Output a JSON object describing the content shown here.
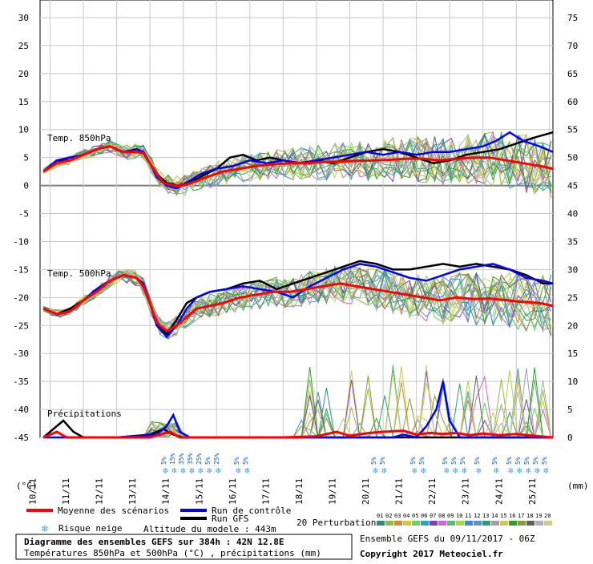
{
  "chart_data": {
    "type": "line",
    "title": "Diagramme des ensembles GEFS sur 384h : 42N 12.8E",
    "subtitle": "Températures 850hPa et 500hPa (°C) , précipitations (mm)",
    "left_axis": {
      "label": "(°C)",
      "ylim": [
        -45,
        30
      ],
      "ticks": [
        "30",
        "25",
        "20",
        "15",
        "10",
        "5",
        "0",
        "-5",
        "-10",
        "-15",
        "-20",
        "-25",
        "-30",
        "-35",
        "-40",
        "-45"
      ]
    },
    "right_axis": {
      "label": "(mm)",
      "ylim": [
        0,
        75
      ],
      "ticks": [
        "75",
        "70",
        "65",
        "60",
        "55",
        "50",
        "45",
        "40",
        "35",
        "30",
        "25",
        "20",
        "15",
        "10",
        "5",
        "0"
      ]
    },
    "x_ticks": [
      "10/11",
      "11/11",
      "12/11",
      "13/11",
      "14/11",
      "15/11",
      "16/11",
      "17/11",
      "18/11",
      "19/11",
      "20/11",
      "21/11",
      "22/11",
      "23/11",
      "24/11",
      "25/11"
    ],
    "grid": true,
    "panels": [
      {
        "label": "Temp. 850hPa"
      },
      {
        "label": "Temp. 500hPa"
      },
      {
        "label": "Précipitations"
      }
    ],
    "series": [
      {
        "name": "Moyenne des scénarios",
        "color": "#ff0000",
        "t850": [
          [
            9.8,
            2.5
          ],
          [
            10.2,
            4
          ],
          [
            10.6,
            4.5
          ],
          [
            11,
            5.5
          ],
          [
            11.4,
            6.5
          ],
          [
            11.8,
            7
          ],
          [
            12.2,
            6
          ],
          [
            12.6,
            6
          ],
          [
            12.8,
            5.8
          ],
          [
            13,
            4
          ],
          [
            13.2,
            2
          ],
          [
            13.4,
            0.5
          ],
          [
            13.7,
            0
          ],
          [
            14,
            0
          ],
          [
            14.3,
            0.6
          ],
          [
            14.7,
            1.5
          ],
          [
            15.2,
            2.5
          ],
          [
            15.7,
            3
          ],
          [
            16.2,
            3.5
          ],
          [
            16.7,
            3.8
          ],
          [
            17.2,
            4
          ],
          [
            17.7,
            4
          ],
          [
            18.2,
            4.2
          ],
          [
            18.7,
            4.3
          ],
          [
            19.2,
            4.4
          ],
          [
            19.7,
            4.5
          ],
          [
            20.2,
            4.6
          ],
          [
            20.7,
            4.8
          ],
          [
            21.2,
            4.8
          ],
          [
            21.7,
            4.5
          ],
          [
            22.2,
            4.8
          ],
          [
            22.7,
            5
          ],
          [
            23.2,
            5
          ],
          [
            23.7,
            4.5
          ],
          [
            24.2,
            4
          ],
          [
            24.7,
            3.5
          ],
          [
            25.1,
            3
          ]
        ],
        "t500": [
          [
            9.8,
            -22
          ],
          [
            10.2,
            -23
          ],
          [
            10.6,
            -22.5
          ],
          [
            11,
            -20.5
          ],
          [
            11.4,
            -19
          ],
          [
            11.8,
            -17
          ],
          [
            12.2,
            -16
          ],
          [
            12.6,
            -16.5
          ],
          [
            12.8,
            -18
          ],
          [
            13,
            -21
          ],
          [
            13.2,
            -24.5
          ],
          [
            13.5,
            -26
          ],
          [
            13.8,
            -25
          ],
          [
            14.1,
            -23.5
          ],
          [
            14.4,
            -22
          ],
          [
            14.8,
            -21.5
          ],
          [
            15.2,
            -21
          ],
          [
            15.7,
            -20
          ],
          [
            16.2,
            -19.5
          ],
          [
            16.7,
            -19
          ],
          [
            17.2,
            -19
          ],
          [
            17.7,
            -18.5
          ],
          [
            18.2,
            -18
          ],
          [
            18.7,
            -17.5
          ],
          [
            19.2,
            -18
          ],
          [
            19.7,
            -18.5
          ],
          [
            20.2,
            -19
          ],
          [
            20.7,
            -19.5
          ],
          [
            21.2,
            -20
          ],
          [
            21.7,
            -20.5
          ],
          [
            22.2,
            -20
          ],
          [
            22.7,
            -20.3
          ],
          [
            23.2,
            -20.2
          ],
          [
            23.7,
            -20.5
          ],
          [
            24.2,
            -20.8
          ],
          [
            24.7,
            -21
          ],
          [
            25.1,
            -21.5
          ]
        ],
        "precip": [
          [
            9.8,
            0
          ],
          [
            10.2,
            1
          ],
          [
            10.5,
            0
          ],
          [
            11,
            0
          ],
          [
            12,
            0
          ],
          [
            13,
            0
          ],
          [
            13.3,
            0.5
          ],
          [
            13.6,
            1
          ],
          [
            13.9,
            0
          ],
          [
            14.2,
            0
          ],
          [
            17,
            0
          ],
          [
            18,
            0.2
          ],
          [
            18.6,
            1
          ],
          [
            19,
            0.3
          ],
          [
            19.6,
            0.8
          ],
          [
            20,
            1
          ],
          [
            20.6,
            1.2
          ],
          [
            21,
            0.5
          ],
          [
            21.4,
            0.8
          ],
          [
            21.8,
            0.6
          ],
          [
            22.2,
            0.8
          ],
          [
            22.6,
            0.4
          ],
          [
            23,
            0.7
          ],
          [
            23.5,
            0.4
          ],
          [
            24,
            0.6
          ],
          [
            24.5,
            0.3
          ],
          [
            25.1,
            0
          ]
        ]
      },
      {
        "name": "Run de contrôle",
        "color": "#0000ff",
        "t850": [
          [
            9.8,
            2.5
          ],
          [
            10.2,
            4.5
          ],
          [
            10.6,
            5
          ],
          [
            11,
            5.5
          ],
          [
            11.4,
            6.5
          ],
          [
            11.8,
            7
          ],
          [
            12.2,
            6
          ],
          [
            12.6,
            6.5
          ],
          [
            12.8,
            6
          ],
          [
            13,
            4
          ],
          [
            13.2,
            1.5
          ],
          [
            13.5,
            0
          ],
          [
            13.8,
            -0.5
          ],
          [
            14.1,
            0.5
          ],
          [
            14.5,
            2
          ],
          [
            15,
            3
          ],
          [
            15.5,
            3.5
          ],
          [
            16,
            4.5
          ],
          [
            16.5,
            4
          ],
          [
            17,
            4.5
          ],
          [
            17.5,
            4
          ],
          [
            18,
            4.5
          ],
          [
            18.5,
            5
          ],
          [
            19,
            5.5
          ],
          [
            19.5,
            6
          ],
          [
            20,
            5.5
          ],
          [
            20.5,
            6
          ],
          [
            21,
            5.5
          ],
          [
            21.5,
            6
          ],
          [
            22,
            6
          ],
          [
            22.5,
            6.5
          ],
          [
            23,
            7
          ],
          [
            23.4,
            8
          ],
          [
            23.8,
            9.5
          ],
          [
            24.2,
            8
          ],
          [
            24.7,
            7
          ],
          [
            25.1,
            6
          ]
        ],
        "t500": [
          [
            9.8,
            -22
          ],
          [
            10.2,
            -23
          ],
          [
            10.6,
            -22.5
          ],
          [
            11,
            -20.5
          ],
          [
            11.4,
            -18.5
          ],
          [
            11.8,
            -17
          ],
          [
            12.2,
            -16
          ],
          [
            12.6,
            -16.5
          ],
          [
            12.8,
            -17.5
          ],
          [
            13,
            -21
          ],
          [
            13.2,
            -25
          ],
          [
            13.5,
            -27
          ],
          [
            13.8,
            -25
          ],
          [
            14.1,
            -22
          ],
          [
            14.4,
            -20
          ],
          [
            14.8,
            -19
          ],
          [
            15.3,
            -18.5
          ],
          [
            15.8,
            -18
          ],
          [
            16.3,
            -18.5
          ],
          [
            16.8,
            -19
          ],
          [
            17.3,
            -20
          ],
          [
            17.8,
            -18
          ],
          [
            18.3,
            -16.5
          ],
          [
            18.8,
            -15
          ],
          [
            19.3,
            -14
          ],
          [
            19.8,
            -14.5
          ],
          [
            20.3,
            -15.5
          ],
          [
            20.8,
            -16.5
          ],
          [
            21.3,
            -17
          ],
          [
            21.8,
            -16
          ],
          [
            22.3,
            -15
          ],
          [
            22.8,
            -14.5
          ],
          [
            23.3,
            -14
          ],
          [
            23.8,
            -15
          ],
          [
            24.3,
            -16.5
          ],
          [
            24.8,
            -17
          ],
          [
            25.1,
            -17.5
          ]
        ],
        "precip": [
          [
            9.8,
            0
          ],
          [
            12,
            0
          ],
          [
            13.2,
            0.5
          ],
          [
            13.5,
            2
          ],
          [
            13.7,
            4
          ],
          [
            13.9,
            1
          ],
          [
            14.2,
            0
          ],
          [
            20.3,
            0
          ],
          [
            20.6,
            0.5
          ],
          [
            21,
            0
          ],
          [
            21.3,
            2
          ],
          [
            21.6,
            5
          ],
          [
            21.8,
            10
          ],
          [
            22,
            3
          ],
          [
            22.3,
            0
          ],
          [
            25.1,
            0
          ]
        ]
      },
      {
        "name": "Run GFS",
        "color": "#000000",
        "t850": [
          [
            9.8,
            2.5
          ],
          [
            10.2,
            4.5
          ],
          [
            10.6,
            4.5
          ],
          [
            11,
            5.5
          ],
          [
            11.4,
            6.5
          ],
          [
            11.8,
            7
          ],
          [
            12.2,
            6
          ],
          [
            12.6,
            6
          ],
          [
            12.8,
            6
          ],
          [
            13,
            4
          ],
          [
            13.2,
            2
          ],
          [
            13.5,
            0.5
          ],
          [
            13.8,
            0
          ],
          [
            14.1,
            0.3
          ],
          [
            14.5,
            1.5
          ],
          [
            15,
            3
          ],
          [
            15.4,
            5
          ],
          [
            15.8,
            5.5
          ],
          [
            16.2,
            4.5
          ],
          [
            16.6,
            5
          ],
          [
            17,
            4.5
          ],
          [
            17.5,
            4
          ],
          [
            18,
            4.5
          ],
          [
            18.5,
            4
          ],
          [
            19,
            5
          ],
          [
            19.5,
            6
          ],
          [
            20,
            6.5
          ],
          [
            20.5,
            6
          ],
          [
            21,
            5
          ],
          [
            21.5,
            4
          ],
          [
            22,
            4.5
          ],
          [
            22.5,
            5.5
          ],
          [
            23,
            6
          ],
          [
            23.5,
            6.5
          ],
          [
            24,
            7.5
          ],
          [
            24.5,
            8.5
          ],
          [
            25.1,
            9.5
          ]
        ],
        "t500": [
          [
            9.8,
            -22
          ],
          [
            10.2,
            -23
          ],
          [
            10.6,
            -22
          ],
          [
            11,
            -20.5
          ],
          [
            11.4,
            -18.5
          ],
          [
            11.8,
            -17
          ],
          [
            12.2,
            -16
          ],
          [
            12.6,
            -16.5
          ],
          [
            12.8,
            -18
          ],
          [
            13,
            -21
          ],
          [
            13.2,
            -24.5
          ],
          [
            13.5,
            -26.5
          ],
          [
            13.8,
            -24
          ],
          [
            14.1,
            -21
          ],
          [
            14.4,
            -20
          ],
          [
            14.8,
            -19
          ],
          [
            15.3,
            -18.5
          ],
          [
            15.8,
            -17.5
          ],
          [
            16.3,
            -17
          ],
          [
            16.8,
            -18.5
          ],
          [
            17.3,
            -17.5
          ],
          [
            17.8,
            -16.5
          ],
          [
            18.3,
            -15.5
          ],
          [
            18.8,
            -14.5
          ],
          [
            19.3,
            -13.5
          ],
          [
            19.8,
            -14
          ],
          [
            20.3,
            -15
          ],
          [
            20.8,
            -15
          ],
          [
            21.3,
            -14.5
          ],
          [
            21.8,
            -14
          ],
          [
            22.3,
            -14.5
          ],
          [
            22.8,
            -14
          ],
          [
            23.3,
            -14.5
          ],
          [
            23.8,
            -15
          ],
          [
            24.3,
            -16
          ],
          [
            24.8,
            -17.5
          ],
          [
            25.1,
            -17.5
          ]
        ],
        "precip": [
          [
            9.8,
            0
          ],
          [
            10.2,
            2
          ],
          [
            10.4,
            3
          ],
          [
            10.7,
            1
          ],
          [
            11,
            0
          ],
          [
            12,
            0
          ],
          [
            13,
            0.5
          ],
          [
            13.4,
            1.5
          ],
          [
            13.7,
            0.5
          ],
          [
            14,
            0
          ],
          [
            25.1,
            0
          ]
        ]
      }
    ],
    "perturbations": {
      "label": "20 Perturbations",
      "codes": [
        "01",
        "02",
        "03",
        "04",
        "05",
        "06",
        "07",
        "08",
        "09",
        "10",
        "11",
        "12",
        "13",
        "14",
        "15",
        "16",
        "17",
        "18",
        "19",
        "20"
      ],
      "colors": [
        "#2f8a8a",
        "#8fbc3f",
        "#d28a3a",
        "#d8c53a",
        "#6bd06b",
        "#2aa4c8",
        "#7f3fbf",
        "#d85fd8",
        "#55c06a",
        "#b3d53a",
        "#3c8ed8",
        "#5a8fd0",
        "#2f9f6f",
        "#a0a0a0",
        "#c9c94a",
        "#2ca02c",
        "#8a9a3a",
        "#606060",
        "#b0b0b0",
        "#cfcf7f"
      ]
    },
    "snow_risk_labels": [
      "5%",
      "15%",
      "35%",
      "35%",
      "25%",
      "5%",
      "25%",
      "5%",
      "5%",
      "5%",
      "5%",
      "5%",
      "5%",
      "5%",
      "5%",
      "5%",
      "5%",
      "5%",
      "5%",
      "5%",
      "5%",
      "5%",
      "5%",
      "5%",
      "5%",
      "5%"
    ],
    "legend": [
      {
        "label": "Moyenne des scénarios",
        "color": "#ff0000"
      },
      {
        "label": "Run de contrôle",
        "color": "#0000ff"
      },
      {
        "label": "Run GFS",
        "color": "#000000"
      }
    ],
    "legend_position": "bottom"
  },
  "footer": {
    "snow_label": "Risque neige",
    "altitude": "Altitude du modele : 443m",
    "ensemble": "Ensemble GEFS du 09/11/2017 - 06Z",
    "copyright": "Copyright 2017 Meteociel.fr"
  }
}
